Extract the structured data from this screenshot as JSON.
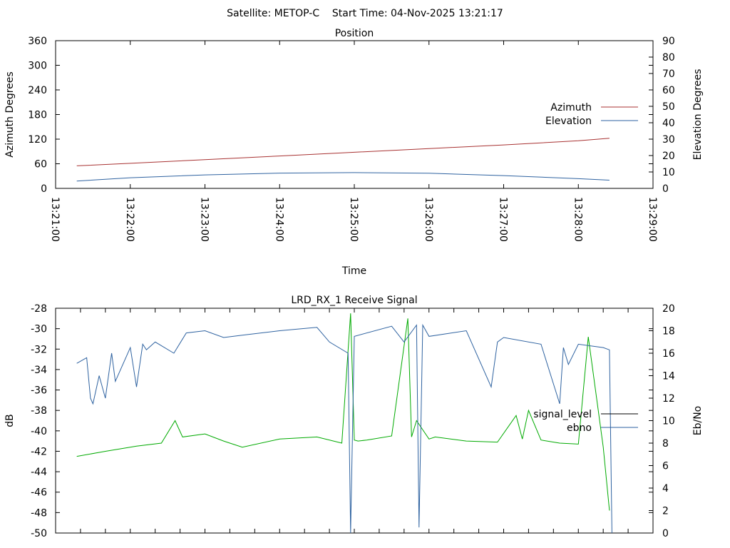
{
  "header": {
    "title": "Satellite: METOP-C    Start Time: 04-Nov-2025 13:21:17"
  },
  "chart_data": [
    {
      "type": "line",
      "title": "Position",
      "xlabel": "Time",
      "ylabel_left": "Azimuth Degrees",
      "ylabel_right": "Elevation Degrees",
      "ylim_left": [
        0,
        360
      ],
      "ylim_right": [
        0,
        90
      ],
      "yticks_left": [
        0,
        60,
        120,
        180,
        240,
        300,
        360
      ],
      "yticks_right": [
        0,
        10,
        20,
        30,
        40,
        50,
        60,
        70,
        80,
        90
      ],
      "xlim": [
        "13:21:00",
        "13:29:00"
      ],
      "xticks": [
        "13:21:00",
        "13:22:00",
        "13:23:00",
        "13:24:00",
        "13:25:00",
        "13:26:00",
        "13:27:00",
        "13:28:00",
        "13:29:00"
      ],
      "legend_position": "right",
      "grid": false,
      "series": [
        {
          "name": "Azimuth",
          "axis": "left",
          "color": "#a83232",
          "x": [
            "13:21:17",
            "13:22:00",
            "13:23:00",
            "13:24:00",
            "13:25:00",
            "13:26:00",
            "13:27:00",
            "13:28:00",
            "13:28:25"
          ],
          "y": [
            55,
            61,
            70,
            79,
            88,
            97,
            106,
            116,
            122
          ]
        },
        {
          "name": "Elevation",
          "axis": "right",
          "color": "#2e62a0",
          "x": [
            "13:21:17",
            "13:22:00",
            "13:23:00",
            "13:24:00",
            "13:25:00",
            "13:26:00",
            "13:27:00",
            "13:28:00",
            "13:28:25"
          ],
          "y": [
            4.5,
            6.5,
            8.2,
            9.3,
            9.6,
            9.2,
            7.8,
            5.9,
            5.0
          ]
        }
      ]
    },
    {
      "type": "line",
      "title": "LRD_RX_1 Receive Signal",
      "ylabel_left": "dB",
      "ylabel_right": "Eb/No",
      "ylim_left": [
        -50,
        -28
      ],
      "ylim_right": [
        0,
        20
      ],
      "yticks_left": [
        -50,
        -48,
        -46,
        -44,
        -42,
        -40,
        -38,
        -36,
        -34,
        -32,
        -30,
        -28
      ],
      "yticks_right": [
        0,
        2,
        4,
        6,
        8,
        10,
        12,
        14,
        16,
        18,
        20
      ],
      "xlim": [
        "13:21:00",
        "13:29:00"
      ],
      "legend_position": "right",
      "grid": false,
      "series": [
        {
          "name": "signal_level",
          "axis": "left",
          "color": "#00aa00",
          "legend_color": "#000000",
          "x": [
            "13:21:17",
            "13:21:40",
            "13:22:05",
            "13:22:25",
            "13:22:36",
            "13:22:42",
            "13:23:00",
            "13:23:15",
            "13:23:30",
            "13:24:00",
            "13:24:30",
            "13:24:50",
            "13:24:57",
            "13:25:00",
            "13:25:03",
            "13:25:10",
            "13:25:30",
            "13:25:43",
            "13:25:46",
            "13:25:50",
            "13:26:00",
            "13:26:05",
            "13:26:30",
            "13:26:55",
            "13:27:10",
            "13:27:15",
            "13:27:20",
            "13:27:30",
            "13:27:45",
            "13:28:00",
            "13:28:08",
            "13:28:20",
            "13:28:25"
          ],
          "y": [
            -42.5,
            -42.0,
            -41.5,
            -41.2,
            -39.0,
            -40.6,
            -40.3,
            -41.0,
            -41.6,
            -40.8,
            -40.6,
            -41.2,
            -28.5,
            -40.9,
            -41.0,
            -40.9,
            -40.5,
            -29.0,
            -40.6,
            -39.0,
            -40.8,
            -40.6,
            -41.0,
            -41.1,
            -38.5,
            -40.8,
            -38.0,
            -40.9,
            -41.2,
            -41.3,
            -30.8,
            -41.6,
            -47.8
          ]
        },
        {
          "name": "ebno",
          "axis": "right",
          "color": "#2e62a0",
          "x": [
            "13:21:17",
            "13:21:25",
            "13:21:28",
            "13:21:30",
            "13:21:35",
            "13:21:40",
            "13:21:45",
            "13:21:48",
            "13:22:00",
            "13:22:05",
            "13:22:10",
            "13:22:13",
            "13:22:20",
            "13:22:35",
            "13:22:45",
            "13:23:00",
            "13:23:15",
            "13:23:30",
            "13:24:00",
            "13:24:30",
            "13:24:40",
            "13:24:55",
            "13:24:57",
            "13:25:00",
            "13:25:30",
            "13:25:40",
            "13:25:50",
            "13:25:52",
            "13:25:55",
            "13:26:00",
            "13:26:30",
            "13:26:50",
            "13:26:55",
            "13:27:00",
            "13:27:30",
            "13:27:45",
            "13:27:48",
            "13:27:52",
            "13:28:00",
            "13:28:20",
            "13:28:25",
            "13:28:27"
          ],
          "y": [
            15.1,
            15.6,
            12.0,
            11.5,
            14.0,
            12.0,
            16.0,
            13.5,
            16.5,
            13.0,
            16.8,
            16.3,
            17.0,
            16.0,
            17.8,
            18.0,
            17.4,
            17.6,
            18.0,
            18.3,
            17.0,
            16.0,
            0.0,
            17.5,
            18.4,
            17.0,
            18.5,
            0.5,
            18.5,
            17.5,
            18.0,
            13.0,
            17.0,
            17.4,
            16.8,
            11.5,
            16.5,
            15.0,
            16.8,
            16.5,
            16.3,
            0.0
          ]
        }
      ]
    }
  ]
}
